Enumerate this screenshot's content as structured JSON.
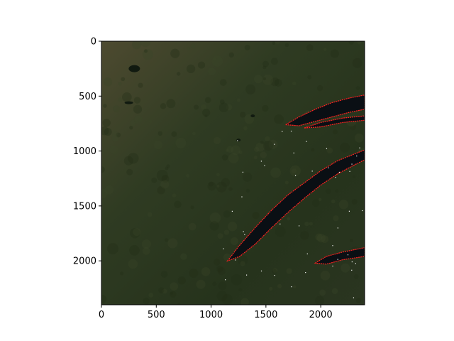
{
  "chart_data": {
    "type": "image",
    "title": "",
    "xlabel": "",
    "ylabel": "",
    "xlim": [
      0,
      2400
    ],
    "ylim": [
      2400,
      0
    ],
    "x_ticks": [
      0,
      500,
      1000,
      1500,
      2000
    ],
    "y_ticks": [
      0,
      500,
      1000,
      1500,
      2000
    ],
    "grid": false,
    "image_description_colors": {
      "land": "#2b3a1f",
      "land_highlight": "#4a4a2e",
      "water": "#0a0f14",
      "shoreline_mask": "#ff2020",
      "bright_pixels": "#ffffff"
    },
    "features": [
      {
        "name": "upper-lake",
        "points": [
          [
            1680,
            760
          ],
          [
            1800,
            690
          ],
          [
            1950,
            620
          ],
          [
            2100,
            560
          ],
          [
            2250,
            520
          ],
          [
            2400,
            490
          ],
          [
            2400,
            620
          ],
          [
            2250,
            650
          ],
          [
            2100,
            690
          ],
          [
            1950,
            730
          ],
          [
            1800,
            770
          ]
        ]
      },
      {
        "name": "upper-lake-lower-arm",
        "points": [
          [
            1850,
            790
          ],
          [
            2000,
            740
          ],
          [
            2200,
            700
          ],
          [
            2400,
            680
          ],
          [
            2400,
            720
          ],
          [
            2200,
            740
          ],
          [
            2000,
            780
          ]
        ]
      },
      {
        "name": "main-lake",
        "points": [
          [
            1150,
            2000
          ],
          [
            1250,
            1870
          ],
          [
            1400,
            1700
          ],
          [
            1550,
            1540
          ],
          [
            1700,
            1400
          ],
          [
            1850,
            1290
          ],
          [
            2000,
            1180
          ],
          [
            2150,
            1090
          ],
          [
            2300,
            1030
          ],
          [
            2400,
            990
          ],
          [
            2400,
            1080
          ],
          [
            2300,
            1130
          ],
          [
            2150,
            1210
          ],
          [
            2000,
            1310
          ],
          [
            1850,
            1430
          ],
          [
            1700,
            1560
          ],
          [
            1550,
            1700
          ],
          [
            1400,
            1850
          ],
          [
            1260,
            1960
          ]
        ]
      },
      {
        "name": "south-lake",
        "points": [
          [
            1950,
            2020
          ],
          [
            2050,
            1960
          ],
          [
            2200,
            1920
          ],
          [
            2400,
            1880
          ],
          [
            2400,
            1960
          ],
          [
            2200,
            1990
          ],
          [
            2050,
            2030
          ]
        ]
      }
    ]
  }
}
